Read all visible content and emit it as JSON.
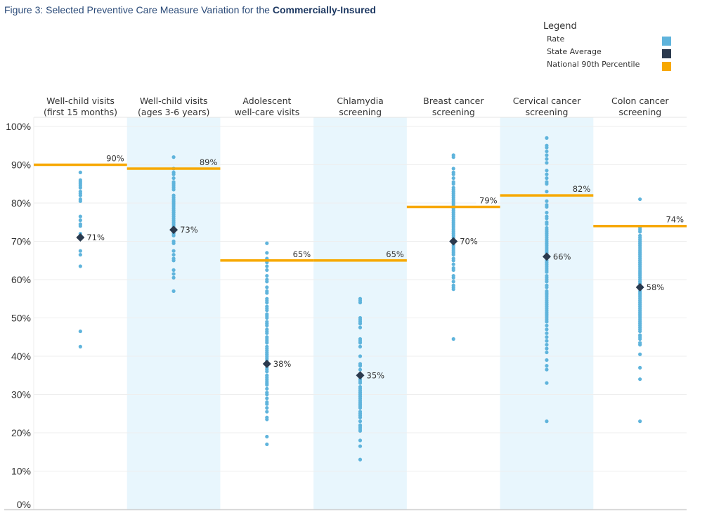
{
  "title": {
    "prefix": "Figure 3: Selected Preventive Care Measure Variation for the ",
    "emphasis": "Commercially-Insured"
  },
  "legend": {
    "title": "Legend",
    "items": [
      {
        "label": "Rate",
        "color": "#5fb4dc"
      },
      {
        "label": "State Average",
        "color": "#2b3a4e"
      },
      {
        "label": "National 90th Percentile",
        "color": "#f7a800"
      }
    ]
  },
  "chart_data": {
    "type": "scatter",
    "title": "Figure 3: Selected Preventive Care Measure Variation for the Commercially-Insured",
    "xlabel": "",
    "ylabel": "",
    "ylim": [
      0,
      100
    ],
    "yticks": [
      "0%",
      "10%",
      "20%",
      "30%",
      "40%",
      "50%",
      "60%",
      "70%",
      "80%",
      "90%",
      "100%"
    ],
    "grid": true,
    "legend_position": "top-right",
    "colors": {
      "rate": "#5fb4dc",
      "state_average": "#2b3a4e",
      "national_90th": "#f7a800",
      "band": "#e8f6fd"
    },
    "categories": [
      {
        "label_lines": [
          "Well-child visits",
          "(first 15 months)"
        ],
        "national_90th": 90,
        "national_label": "90%",
        "state_average": 71,
        "state_label": "71%",
        "rates": [
          88,
          86,
          85.5,
          85,
          84.5,
          84,
          83,
          82.5,
          82,
          81,
          80.5,
          76.5,
          75.5,
          74.5,
          74,
          72,
          67.5,
          66.5,
          63.5,
          46.5,
          42.5
        ]
      },
      {
        "label_lines": [
          "Well-child visits",
          "(ages 3-6 years)"
        ],
        "national_90th": 89,
        "national_label": "89%",
        "state_average": 73,
        "state_label": "73%",
        "rates": [
          92,
          89,
          88,
          87.5,
          86.5,
          85.5,
          85,
          84.5,
          84,
          83.5,
          82,
          81.5,
          81,
          80.5,
          80,
          79.5,
          79,
          78.5,
          78,
          77.5,
          77,
          76.5,
          76,
          75.5,
          75,
          74.5,
          74,
          73.5,
          72.5,
          72,
          71.5,
          70,
          69.5,
          67.5,
          66.5,
          65.5,
          65,
          62.5,
          61.5,
          60.5,
          57
        ]
      },
      {
        "label_lines": [
          "Adolescent",
          "well-care visits"
        ],
        "national_90th": 65,
        "national_label": "65%",
        "state_average": 38,
        "state_label": "38%",
        "rates": [
          69.5,
          67,
          65.5,
          64.5,
          63.5,
          62.5,
          61,
          60,
          59.5,
          58,
          57,
          56.5,
          55,
          54.5,
          54,
          53,
          52.5,
          52,
          51,
          50.5,
          50,
          49,
          48.5,
          48,
          47,
          46.5,
          46,
          45,
          44.5,
          44,
          43.5,
          42.5,
          42,
          41.5,
          41,
          40.5,
          40,
          39.5,
          39,
          37,
          36.5,
          36,
          35,
          34.5,
          34,
          33.5,
          33,
          32.5,
          31.5,
          30.5,
          30,
          29,
          28,
          27.5,
          26.5,
          25.5,
          24,
          23.5,
          19,
          17
        ]
      },
      {
        "label_lines": [
          "Chlamydia",
          "screening"
        ],
        "national_90th": 65,
        "national_label": "65%",
        "state_average": 35,
        "state_label": "35%",
        "rates": [
          55,
          54.5,
          54,
          50,
          49.5,
          49,
          48.5,
          47.5,
          44.5,
          44,
          43.5,
          42.5,
          40,
          38,
          37.5,
          36.5,
          34,
          33.5,
          33,
          32,
          31.5,
          31,
          30.5,
          30,
          29.5,
          29,
          28.5,
          28,
          27.5,
          27,
          26.5,
          25.5,
          25,
          24.5,
          24,
          23,
          22,
          21.5,
          21,
          20.5,
          18,
          16.5,
          13
        ]
      },
      {
        "label_lines": [
          "Breast cancer",
          "screening"
        ],
        "national_90th": 79,
        "national_label": "79%",
        "state_average": 70,
        "state_label": "70%",
        "rates": [
          92.5,
          92,
          89,
          88,
          87.5,
          86.5,
          85.5,
          85,
          84,
          83.5,
          83,
          82.5,
          82,
          81.5,
          81,
          80.5,
          80,
          79.5,
          78.5,
          78,
          77.5,
          77,
          76.5,
          76,
          75.5,
          75,
          74.5,
          74,
          73.5,
          73,
          72.5,
          72,
          71.5,
          71,
          70.5,
          69.5,
          69,
          68.5,
          68,
          67.5,
          67,
          66.5,
          65.5,
          65,
          64,
          63,
          62.5,
          61,
          60.5,
          59.5,
          58.5,
          58,
          57.5,
          44.5
        ]
      },
      {
        "label_lines": [
          "Cervical cancer",
          "screening"
        ],
        "national_90th": 82,
        "national_label": "82%",
        "state_average": 66,
        "state_label": "66%",
        "rates": [
          97,
          95,
          94.5,
          93.5,
          92.5,
          91.5,
          90.5,
          88.5,
          87.5,
          86.5,
          85.5,
          85,
          83,
          80.5,
          79.5,
          79,
          77.5,
          76.5,
          76,
          75,
          74.5,
          73.5,
          73,
          72.5,
          72,
          71.5,
          71,
          70.5,
          70,
          69.5,
          69,
          68.5,
          68,
          67.5,
          67,
          65,
          64.5,
          64,
          63.5,
          63,
          62.5,
          62,
          61,
          60.5,
          60,
          59.5,
          58.5,
          58,
          57,
          56.5,
          56,
          55.5,
          55,
          54.5,
          54,
          53.5,
          53,
          52.5,
          52,
          51.5,
          51,
          50.5,
          50,
          49.5,
          49,
          48,
          47,
          46,
          45,
          44,
          43,
          42,
          41,
          39,
          37.5,
          36.5,
          33,
          23
        ]
      },
      {
        "label_lines": [
          "Colon cancer",
          "screening"
        ],
        "national_90th": 74,
        "national_label": "74%",
        "state_average": 58,
        "state_label": "58%",
        "rates": [
          81,
          73.5,
          73,
          72.5,
          71.5,
          71,
          70.5,
          70,
          69.5,
          69,
          68.5,
          68,
          67.5,
          67,
          66.5,
          66,
          65.5,
          65,
          64.5,
          64,
          63.5,
          63,
          62.5,
          62,
          61.5,
          61,
          60.5,
          60,
          59.5,
          59,
          57.5,
          57,
          56.5,
          56,
          55.5,
          55,
          54.5,
          54,
          53.5,
          53,
          52.5,
          52,
          51.5,
          51,
          50.5,
          50,
          49.5,
          49,
          48.5,
          48,
          47.5,
          47,
          46.5,
          45.5,
          45,
          44.5,
          43.5,
          43,
          40.5,
          37,
          34,
          23
        ]
      }
    ]
  }
}
